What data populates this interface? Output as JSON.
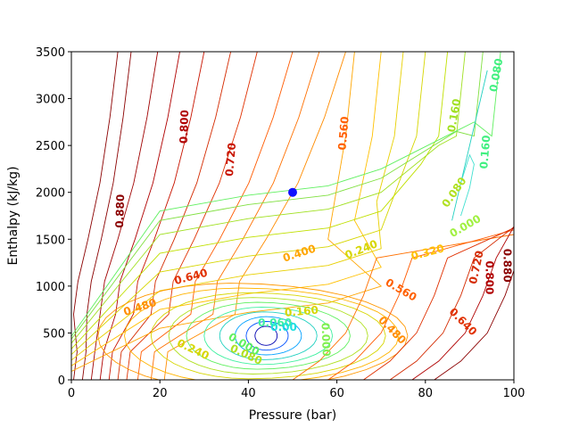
{
  "chart_data": {
    "type": "contour",
    "title": "",
    "xlabel": "Pressure (bar)",
    "ylabel": "Enthalpy (kJ/kg)",
    "xlim": [
      0,
      100
    ],
    "ylim": [
      0,
      3500
    ],
    "xticks": [
      "0",
      "20",
      "40",
      "60",
      "80",
      "100"
    ],
    "yticks": [
      "0",
      "500",
      "1000",
      "1500",
      "2000",
      "2500",
      "3000",
      "3500"
    ],
    "grid": false,
    "colormap": "jet",
    "colors": {
      "dark_red": "#8b0000",
      "red": "#d42a00",
      "orange_red": "#ff5a00",
      "orange": "#ff8c00",
      "yellow": "#d6d600",
      "yellow_green": "#a0e020",
      "green": "#60f060",
      "cyan": "#20d0c0",
      "blue": "#0050ff",
      "navy": "#0000b0",
      "marker": "#1010ff"
    },
    "marker": {
      "x": 50,
      "y": 2000,
      "color": "#1010ff"
    },
    "contour_labels": [
      {
        "text": "0.880",
        "x": 11,
        "y": 1800,
        "rotation": -88,
        "color": "#8b0000"
      },
      {
        "text": "0.800",
        "x": 25.5,
        "y": 2700,
        "rotation": -88,
        "color": "#b00000"
      },
      {
        "text": "0.720",
        "x": 36,
        "y": 2350,
        "rotation": -85,
        "color": "#c81400"
      },
      {
        "text": "0.560",
        "x": 61.5,
        "y": 2630,
        "rotation": -85,
        "color": "#ff6000"
      },
      {
        "text": "0.640",
        "x": 27,
        "y": 1100,
        "rotation": -15,
        "color": "#e03000"
      },
      {
        "text": "0.480",
        "x": 15.5,
        "y": 775,
        "rotation": -18,
        "color": "#ff8c00"
      },
      {
        "text": "0.400",
        "x": 51.5,
        "y": 1350,
        "rotation": -18,
        "color": "#ffa500"
      },
      {
        "text": "0.240",
        "x": 65.5,
        "y": 1390,
        "rotation": -22,
        "color": "#d6d600"
      },
      {
        "text": "0.320",
        "x": 80.5,
        "y": 1360,
        "rotation": -15,
        "color": "#ffc000"
      },
      {
        "text": "0.000",
        "x": 89,
        "y": 1640,
        "rotation": -30,
        "color": "#a0f040"
      },
      {
        "text": "0.080",
        "x": 86.5,
        "y": 2000,
        "rotation": -55,
        "color": "#b0e020"
      },
      {
        "text": "0.160",
        "x": 86.5,
        "y": 2820,
        "rotation": -80,
        "color": "#a0e020"
      },
      {
        "text": "0.160",
        "x": 93.5,
        "y": 2430,
        "rotation": -85,
        "color": "#40f080"
      },
      {
        "text": "0.080",
        "x": 96,
        "y": 3250,
        "rotation": -80,
        "color": "#40f080"
      },
      {
        "text": "0.720",
        "x": 91.5,
        "y": 1200,
        "rotation": -78,
        "color": "#d42a00"
      },
      {
        "text": "0.800",
        "x": 94.5,
        "y": 1090,
        "rotation": 90,
        "color": "#b00000"
      },
      {
        "text": "0.880",
        "x": 98.5,
        "y": 1220,
        "rotation": 90,
        "color": "#8b0000"
      },
      {
        "text": "0.560",
        "x": 74.5,
        "y": 960,
        "rotation": 30,
        "color": "#ff6000"
      },
      {
        "text": "0.480",
        "x": 72.5,
        "y": 530,
        "rotation": 45,
        "color": "#ff8c00"
      },
      {
        "text": "0.640",
        "x": 88.5,
        "y": 620,
        "rotation": 45,
        "color": "#e03000"
      },
      {
        "text": "0.160",
        "x": 52,
        "y": 730,
        "rotation": -5,
        "color": "#d6d600"
      },
      {
        "text": "0.240",
        "x": 27.5,
        "y": 325,
        "rotation": 25,
        "color": "#d6d600"
      },
      {
        "text": "0.080",
        "x": 39.5,
        "y": 270,
        "rotation": 25,
        "color": "#b0e020"
      },
      {
        "text": "0.000",
        "x": 39,
        "y": 380,
        "rotation": 30,
        "color": "#60f060"
      },
      {
        "text": "0.000",
        "x": 57.5,
        "y": 430,
        "rotation": 88,
        "color": "#80f050"
      },
      {
        "text": "0.060",
        "x": 46,
        "y": 610,
        "rotation": 0,
        "color": "#40f0a0"
      },
      {
        "text": "0.00",
        "x": 48,
        "y": 560,
        "rotation": 0,
        "color": "#20e0e0"
      }
    ]
  }
}
